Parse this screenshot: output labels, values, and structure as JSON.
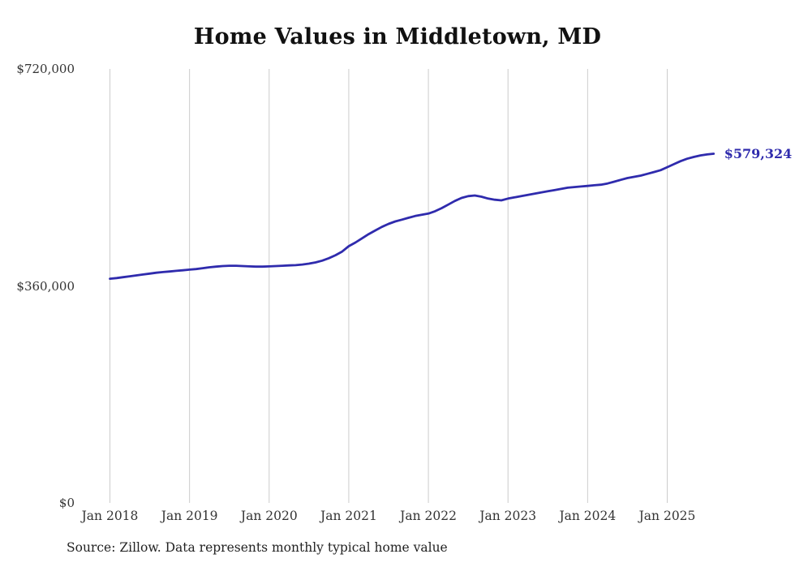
{
  "title": "Home Values in Middletown, MD",
  "source_note": "Source: Zillow. Data represents monthly typical home value",
  "colors": {
    "line": "#2f2bad",
    "grid": "#cccccc",
    "axis_text": "#333333",
    "title_text": "#111111"
  },
  "chart_data": {
    "type": "line",
    "title": "Home Values in Middletown, MD",
    "series_name": "Monthly typical home value",
    "legend": "none",
    "grid": "vertical-only",
    "ylim": [
      0,
      720000
    ],
    "y_ticks": [
      {
        "label": "$0",
        "value": 0
      },
      {
        "label": "$360,000",
        "value": 360000
      },
      {
        "label": "$720,000",
        "value": 720000
      }
    ],
    "x_tick_labels": [
      "Jan 2018",
      "Jan 2019",
      "Jan 2020",
      "Jan 2021",
      "Jan 2022",
      "Jan 2023",
      "Jan 2024",
      "Jan 2025"
    ],
    "x_tick_month_indices": [
      0,
      12,
      24,
      36,
      48,
      60,
      72,
      84
    ],
    "start_month": "2018-01",
    "latest_value": 579324,
    "latest_label": "$579,324",
    "values": [
      372000,
      373000,
      374500,
      376000,
      377500,
      379000,
      380500,
      382000,
      383000,
      384000,
      385000,
      386000,
      387000,
      388000,
      389500,
      391000,
      392000,
      393000,
      393500,
      393500,
      393000,
      392500,
      392000,
      392000,
      392500,
      393000,
      393500,
      394000,
      394500,
      395500,
      397000,
      399000,
      402000,
      406000,
      411000,
      417000,
      426000,
      432000,
      439000,
      446000,
      452000,
      458000,
      463000,
      467000,
      470000,
      473000,
      476000,
      478000,
      480000,
      484000,
      489000,
      495000,
      501000,
      506000,
      509000,
      510000,
      508000,
      505000,
      503000,
      502000,
      505000,
      507000,
      509000,
      511000,
      513000,
      515000,
      517000,
      519000,
      521000,
      523000,
      524000,
      525000,
      526000,
      527000,
      528000,
      530000,
      533000,
      536000,
      539000,
      541000,
      543000,
      546000,
      549000,
      552000,
      557000,
      562000,
      567000,
      571000,
      574000,
      576500,
      578200,
      579324
    ]
  }
}
